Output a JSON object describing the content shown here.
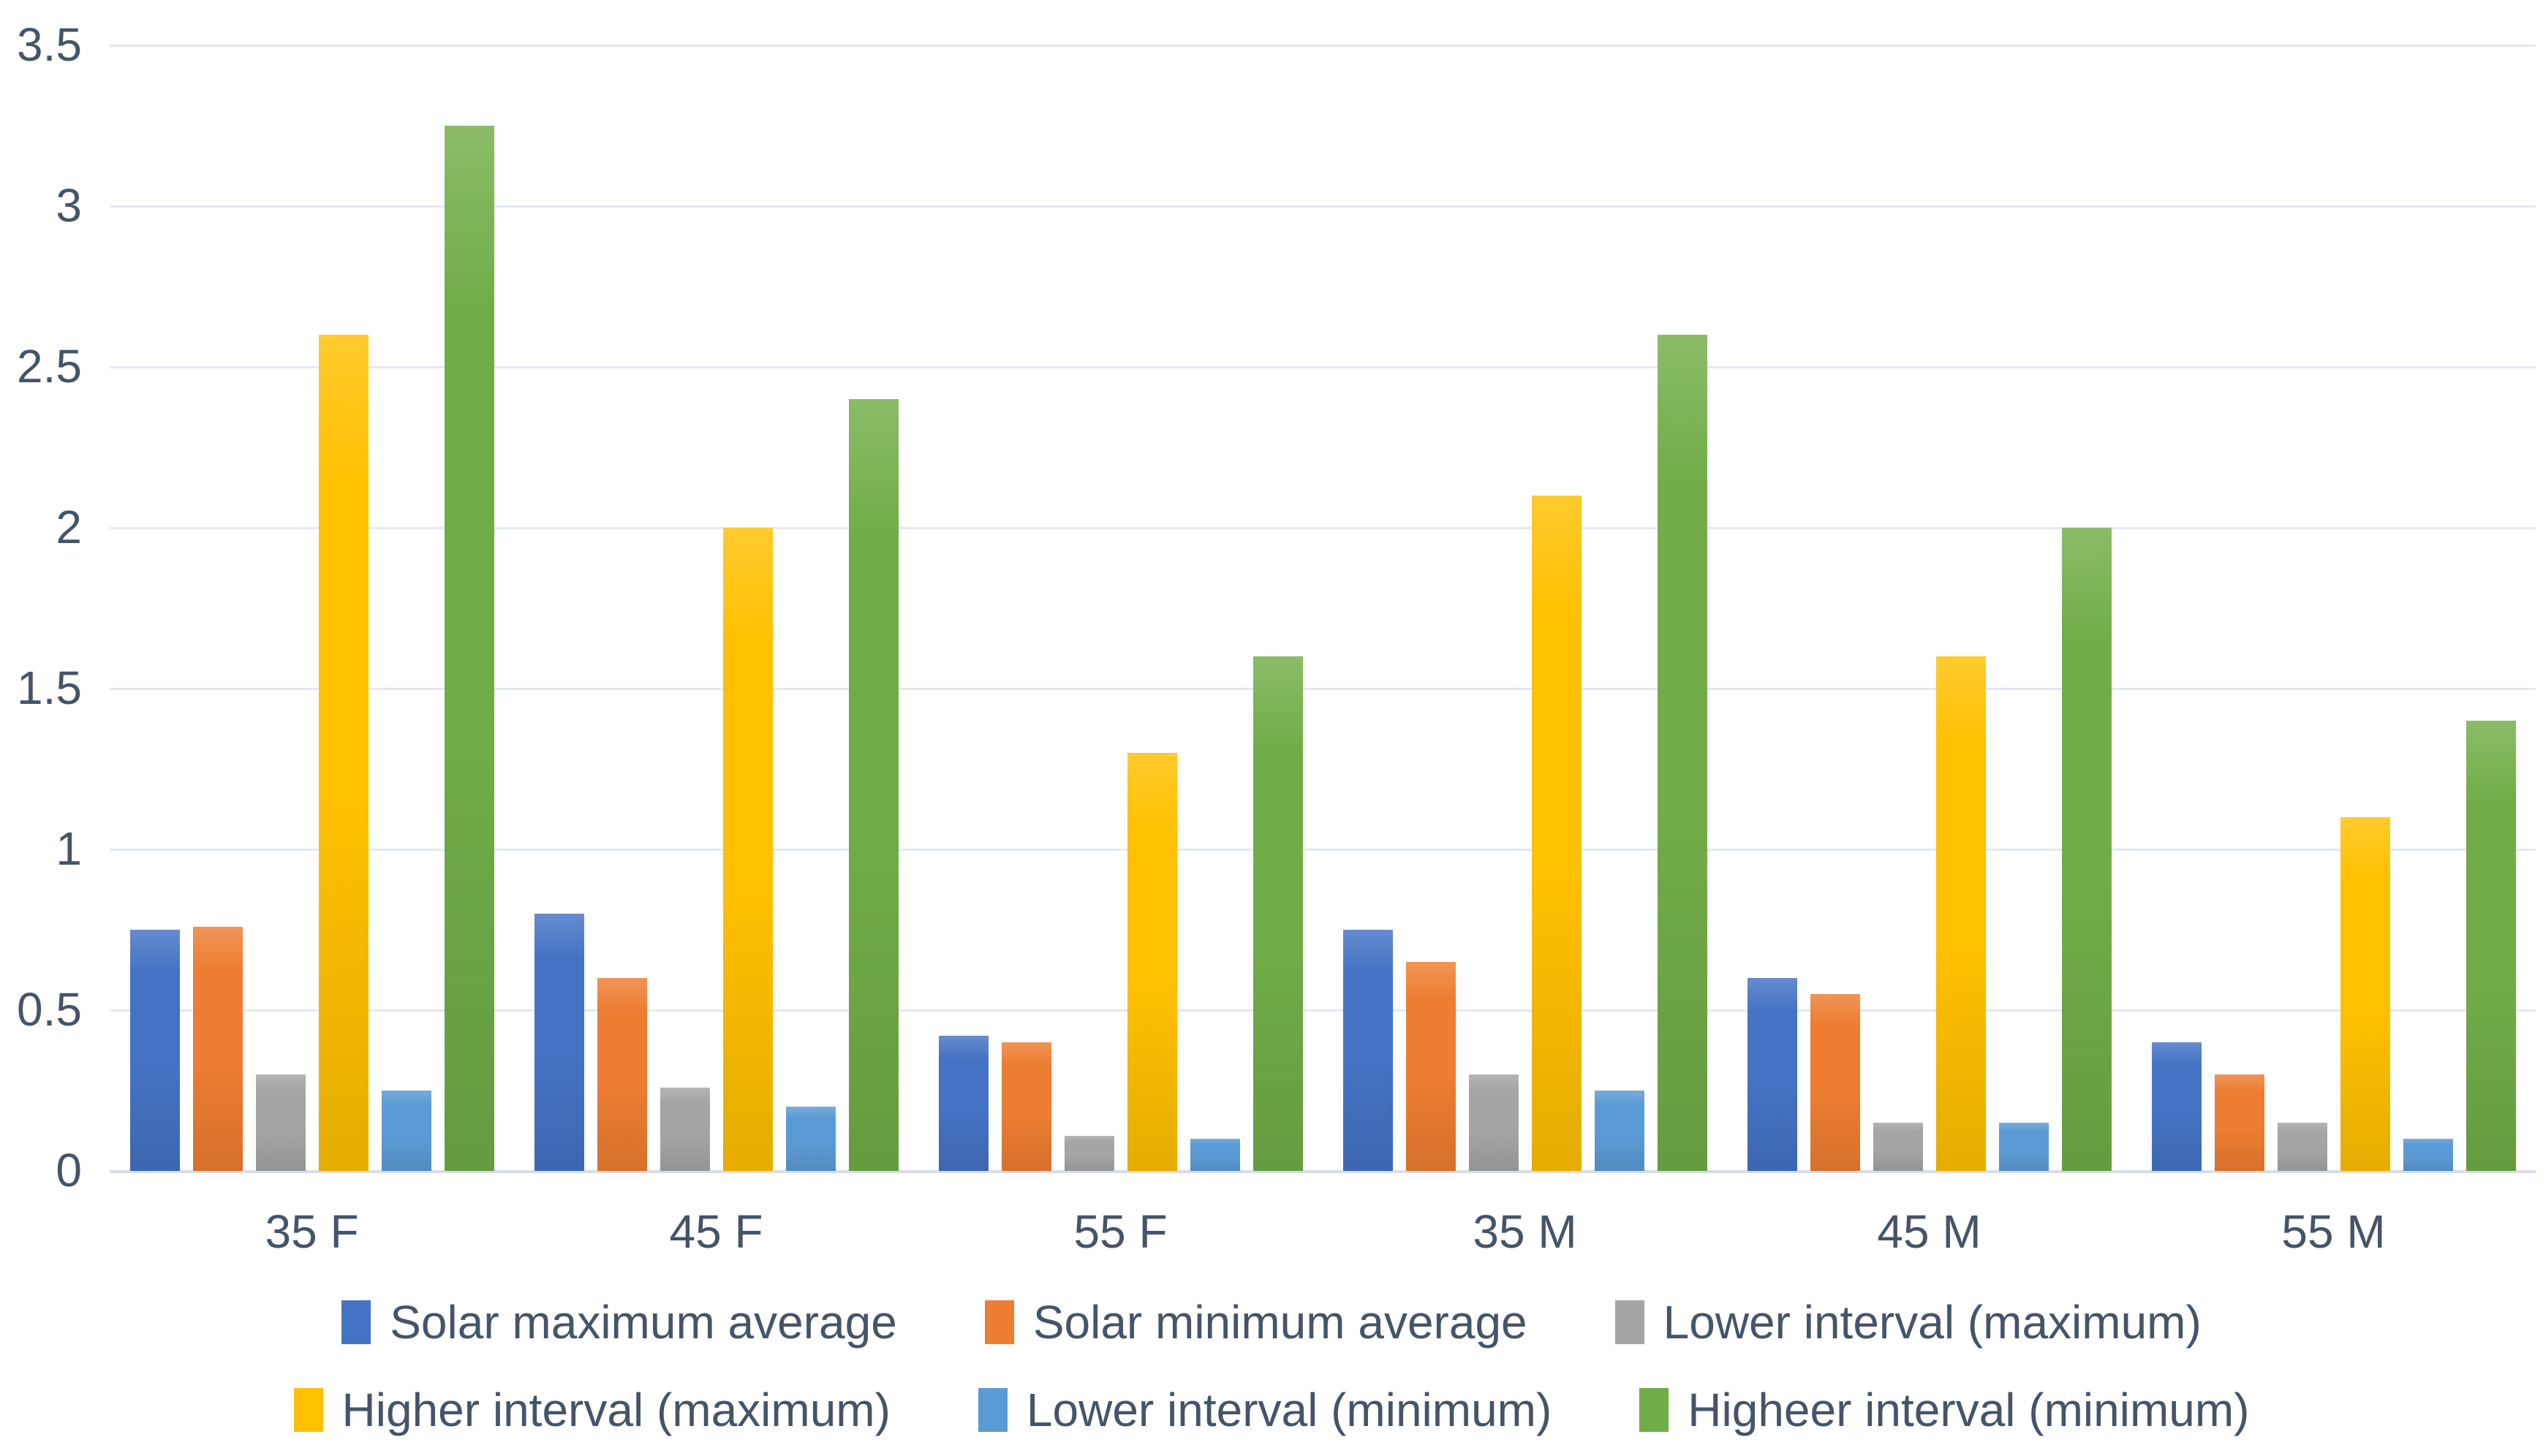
{
  "chart_data": {
    "type": "bar",
    "title": "",
    "categories": [
      "35 F",
      "45 F",
      "55 F",
      "35 M",
      "45 M",
      "55 M"
    ],
    "series": [
      {
        "name": "Solar maximum average",
        "color": "#4472C4",
        "values": [
          0.75,
          0.8,
          0.42,
          0.75,
          0.6,
          0.4
        ]
      },
      {
        "name": "Solar minimum average",
        "color": "#ED7D31",
        "values": [
          0.76,
          0.6,
          0.4,
          0.65,
          0.55,
          0.3
        ]
      },
      {
        "name": "Lower interval (maximum)",
        "color": "#A5A5A5",
        "values": [
          0.3,
          0.26,
          0.11,
          0.3,
          0.15,
          0.15
        ]
      },
      {
        "name": "Higher interval (maximum)",
        "color": "#FFC000",
        "values": [
          2.6,
          2.0,
          1.3,
          2.1,
          1.6,
          1.1
        ]
      },
      {
        "name": "Lower interval (minimum)",
        "color": "#5B9BD5",
        "values": [
          0.25,
          0.2,
          0.1,
          0.25,
          0.15,
          0.1
        ]
      },
      {
        "name": "Higheer interval (minimum)",
        "color": "#70AD47",
        "values": [
          3.25,
          2.4,
          1.6,
          2.6,
          2.0,
          1.4
        ]
      }
    ],
    "y_axis": {
      "min": 0,
      "max": 3.5,
      "step": 0.5,
      "tick_labels": [
        "0",
        "0.5",
        "1",
        "1.5",
        "2",
        "2.5",
        "3",
        "3.5"
      ]
    },
    "x_axis_label": "",
    "y_axis_label": "",
    "grid": true,
    "legend_position": "bottom",
    "legend_rows": [
      [
        0,
        1,
        2
      ],
      [
        3,
        4,
        5
      ]
    ],
    "colors": {
      "axis_text": "#44546A",
      "gridline": "#E4E8F1",
      "background": "#FFFFFF"
    }
  }
}
